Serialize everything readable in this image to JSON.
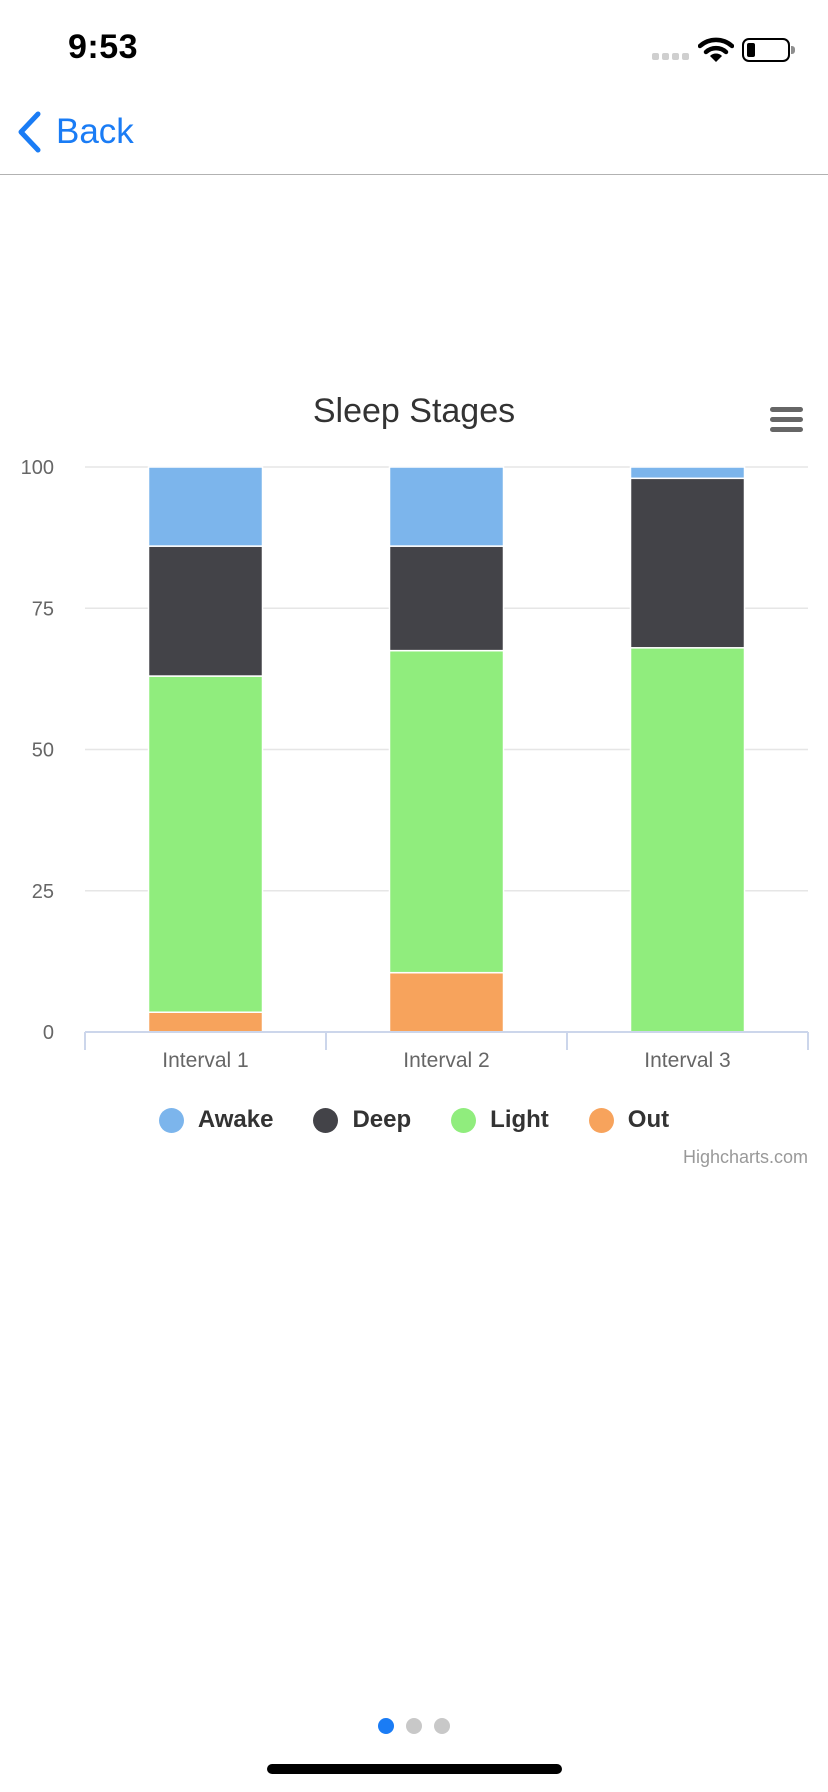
{
  "status_bar": {
    "time": "9:53",
    "battery_level": 0.2,
    "icons": [
      "signal-icon",
      "wifi-icon",
      "battery-icon"
    ]
  },
  "nav": {
    "back_label": "Back",
    "back_icon": "chevron-left-icon",
    "accent_color": "#1a7cf5"
  },
  "chart_menu": {
    "icon": "hamburger-menu-icon"
  },
  "chart_data": {
    "type": "bar",
    "stacked": true,
    "title": "Sleep Stages",
    "xlabel": "",
    "ylabel": "",
    "categories": [
      "Interval 1",
      "Interval 2",
      "Interval 3"
    ],
    "ylim": [
      0,
      100
    ],
    "yticks": [
      0,
      25,
      50,
      75,
      100
    ],
    "grid": true,
    "legend_placement": "bottom-center",
    "series": [
      {
        "name": "Awake",
        "color": "#7cb5ec",
        "values": [
          14,
          14,
          2
        ]
      },
      {
        "name": "Deep",
        "color": "#434348",
        "values": [
          23,
          18.5,
          30
        ]
      },
      {
        "name": "Light",
        "color": "#90ed7d",
        "values": [
          59.5,
          57,
          68
        ]
      },
      {
        "name": "Out",
        "color": "#f7a35c",
        "values": [
          3.5,
          10.5,
          0
        ]
      }
    ],
    "credits": "Highcharts.com"
  },
  "pager": {
    "count": 3,
    "active_index": 0,
    "active_color": "#1a7cf5",
    "inactive_color": "#c8c8c8"
  }
}
